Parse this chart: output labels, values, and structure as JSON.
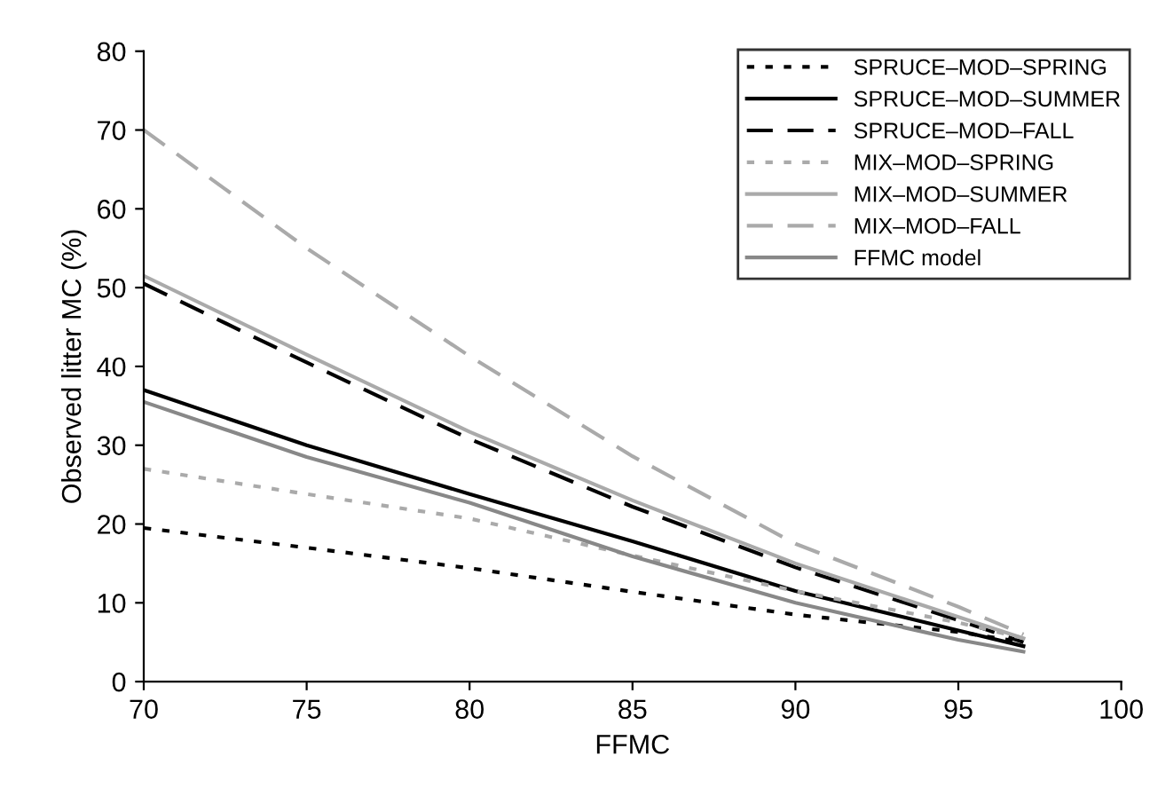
{
  "chart_data": {
    "type": "line",
    "xlabel": "FFMC",
    "ylabel": "Observed litter MC (%)",
    "x": [
      70,
      75,
      80,
      85,
      90,
      95,
      97
    ],
    "series": [
      {
        "name": "SPRUCE–MOD–SPRING",
        "color": "#000000",
        "line_style": "dotted",
        "values": [
          19.5,
          17,
          14.4,
          11.4,
          8.5,
          6.3,
          5
        ]
      },
      {
        "name": "SPRUCE–MOD–SUMMER",
        "color": "#000000",
        "line_style": "solid",
        "values": [
          37,
          30,
          23.8,
          17.8,
          11.5,
          6.5,
          4.5
        ]
      },
      {
        "name": "SPRUCE–MOD–FALL",
        "color": "#000000",
        "line_style": "dashed",
        "values": [
          50.5,
          40.5,
          30.8,
          22.2,
          14.5,
          7.8,
          5
        ]
      },
      {
        "name": "MIX–MOD–SPRING",
        "color": "#aaaaaa",
        "line_style": "dotted",
        "values": [
          27,
          23.8,
          20.7,
          16,
          11.5,
          7.5,
          5.5
        ]
      },
      {
        "name": "MIX–MOD–SUMMER",
        "color": "#aaaaaa",
        "line_style": "solid",
        "values": [
          51.5,
          41.5,
          31.7,
          23,
          15,
          8.2,
          5.5
        ]
      },
      {
        "name": "MIX–MOD–FALL",
        "color": "#aaaaaa",
        "line_style": "dashed",
        "values": [
          70,
          55,
          41.3,
          28.6,
          17.5,
          9.5,
          6
        ]
      },
      {
        "name": "FFMC model",
        "color": "#888888",
        "line_style": "solid",
        "values": [
          35.5,
          28.5,
          22.7,
          15.9,
          10,
          5.3,
          3.8
        ]
      }
    ],
    "xlim": [
      70,
      100
    ],
    "xticks": [
      70,
      75,
      80,
      85,
      90,
      95,
      100
    ],
    "ylim": [
      0,
      80
    ],
    "yticks": [
      0,
      10,
      20,
      30,
      40,
      50,
      60,
      70,
      80
    ],
    "grid": false,
    "legend": "top right",
    "marker": "none"
  }
}
